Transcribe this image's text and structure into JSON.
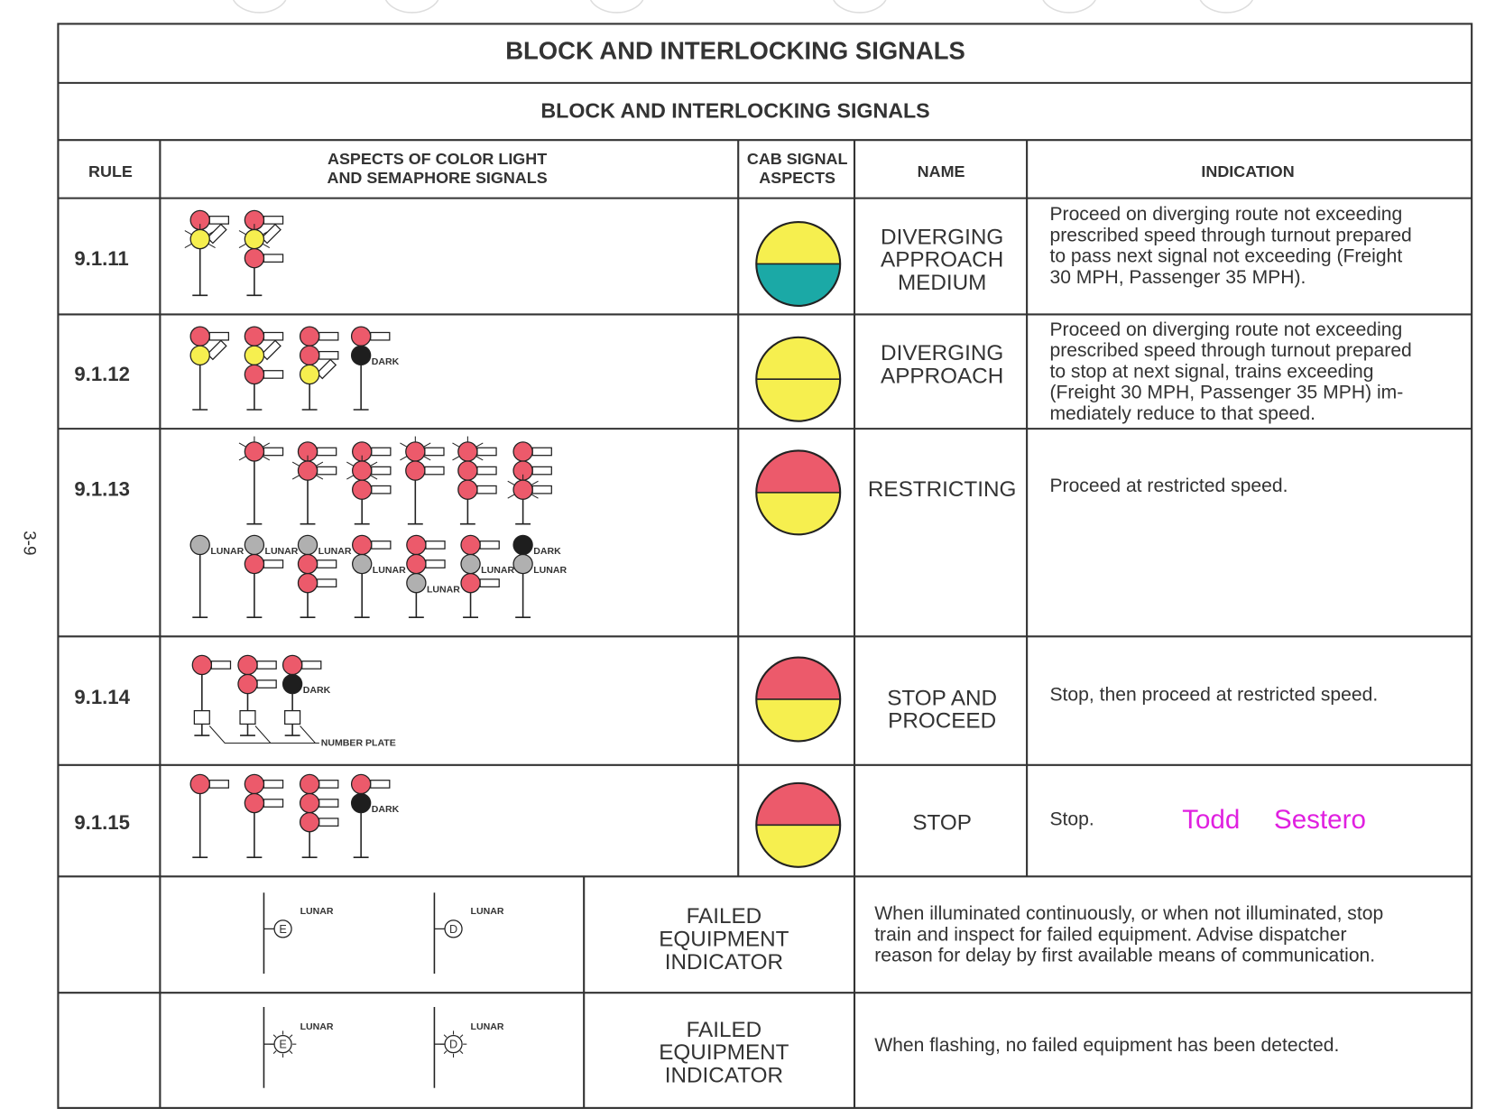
{
  "page_number": "3-9",
  "header": {
    "title": "BLOCK AND INTERLOCKING SIGNALS",
    "subtitle": "BLOCK AND INTERLOCKING SIGNALS"
  },
  "table": {
    "columns": [
      "RULE",
      [
        "ASPECTS OF COLOR LIGHT",
        "AND SEMAPHORE SIGNALS"
      ],
      [
        "CAB SIGNAL",
        "ASPECTS"
      ],
      "NAME",
      "INDICATION"
    ],
    "rows": [
      {
        "rule": "9.1.11",
        "name": [
          "DIVERGING",
          "APPROACH",
          "MEDIUM"
        ],
        "indication": [
          "Proceed on diverging route not exceeding",
          "prescribed speed through turnout prepared",
          "to pass next signal not exceeding (Freight",
          "30 MPH, Passenger 35 MPH)."
        ]
      },
      {
        "rule": "9.1.12",
        "aspect_labels": [
          "DARK"
        ],
        "name": [
          "DIVERGING",
          "APPROACH"
        ],
        "indication": [
          "Proceed on diverging route not exceeding",
          "prescribed speed through turnout prepared",
          "to stop at next signal, trains exceeding",
          "(Freight 30 MPH, Passenger 35 MPH) im-",
          "mediately reduce to that speed."
        ]
      },
      {
        "rule": "9.1.13",
        "aspect_labels": [
          "LUNAR",
          "LUNAR",
          "LUNAR",
          "LUNAR",
          "LUNAR",
          "LUNAR",
          "DARK",
          "LUNAR"
        ],
        "name": [
          "RESTRICTING"
        ],
        "indication": [
          "Proceed at restricted speed."
        ]
      },
      {
        "rule": "9.1.14",
        "aspect_labels": [
          "DARK",
          "NUMBER PLATE"
        ],
        "name": [
          "STOP AND",
          "PROCEED"
        ],
        "indication": [
          "Stop, then proceed at restricted speed."
        ]
      },
      {
        "rule": "9.1.15",
        "aspect_labels": [
          "DARK"
        ],
        "name": [
          "STOP"
        ],
        "indication": [
          "Stop."
        ]
      },
      {
        "aspect_labels": [
          "LUNAR",
          "E",
          "LUNAR",
          "D"
        ],
        "name": [
          "FAILED",
          "EQUIPMENT",
          "INDICATOR"
        ],
        "indication": [
          "When illuminated continuously, or when not illuminated, stop",
          "train and inspect for failed equipment.  Advise dispatcher",
          "reason for delay by first available means of communication."
        ]
      },
      {
        "aspect_labels": [
          "LUNAR",
          "E",
          "LUNAR",
          "D"
        ],
        "name": [
          "FAILED",
          "EQUIPMENT",
          "INDICATOR"
        ],
        "indication": [
          "When flashing, no failed equipment has been detected."
        ]
      }
    ]
  },
  "annotation": "Todd Sestero"
}
